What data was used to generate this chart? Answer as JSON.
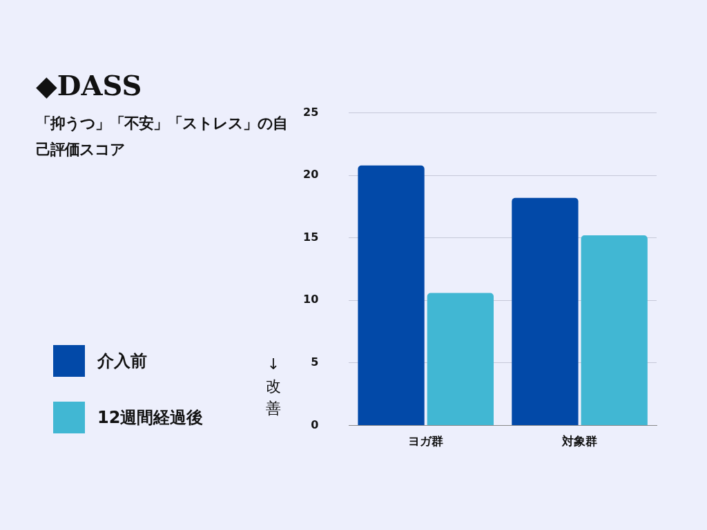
{
  "chart_data": {
    "type": "bar",
    "title": "◆DASS",
    "subtitle": "「抑うつ」「不安」「ストレス」の自己評価スコア",
    "categories": [
      "ヨガ群",
      "対象群"
    ],
    "series": [
      {
        "name": "介入前",
        "color": "#0249a8",
        "values": [
          20.8,
          18.2
        ]
      },
      {
        "name": "12週間経過後",
        "color": "#41b7d3",
        "values": [
          10.6,
          15.2
        ]
      }
    ],
    "ylim": [
      0,
      25
    ],
    "yticks": [
      0,
      5,
      10,
      15,
      20,
      25
    ],
    "grid": "y",
    "legend": "left",
    "annotations": [
      "↓改善"
    ]
  }
}
